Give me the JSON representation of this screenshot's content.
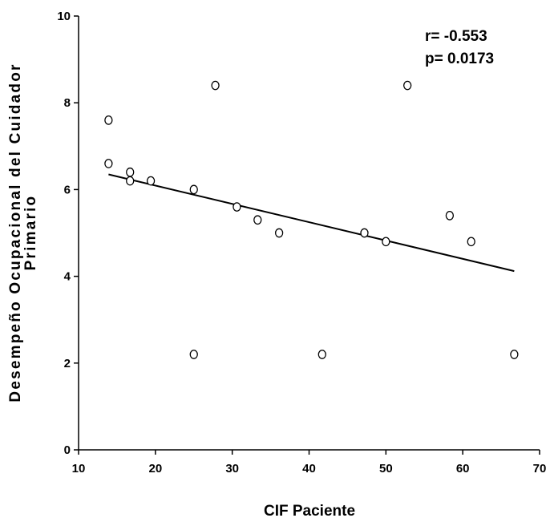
{
  "chart_data": {
    "type": "scatter",
    "xlabel": "CIF Paciente",
    "ylabel_lines": [
      "Desempeño Ocupacional del Cuidador",
      "Primario"
    ],
    "xlim": [
      10,
      70
    ],
    "ylim": [
      0,
      10
    ],
    "xticks": [
      "10",
      "20",
      "30",
      "40",
      "50",
      "60",
      "70"
    ],
    "yticks": [
      "0",
      "2",
      "4",
      "6",
      "8",
      "10"
    ],
    "grid": false,
    "annotations": [
      "r= -0.553",
      "p= 0.0173"
    ],
    "points": [
      {
        "x": 13.9,
        "y": 7.6
      },
      {
        "x": 13.9,
        "y": 6.6
      },
      {
        "x": 16.7,
        "y": 6.4
      },
      {
        "x": 16.7,
        "y": 6.2
      },
      {
        "x": 19.4,
        "y": 6.2
      },
      {
        "x": 25.0,
        "y": 6.0
      },
      {
        "x": 25.0,
        "y": 2.2
      },
      {
        "x": 27.8,
        "y": 8.4
      },
      {
        "x": 30.6,
        "y": 5.6
      },
      {
        "x": 33.3,
        "y": 5.3
      },
      {
        "x": 36.1,
        "y": 5.0
      },
      {
        "x": 41.7,
        "y": 2.2
      },
      {
        "x": 47.2,
        "y": 5.0
      },
      {
        "x": 50.0,
        "y": 4.8
      },
      {
        "x": 52.8,
        "y": 8.4
      },
      {
        "x": 58.3,
        "y": 5.4
      },
      {
        "x": 61.1,
        "y": 4.8
      },
      {
        "x": 66.7,
        "y": 2.2
      }
    ],
    "trendline": {
      "x": [
        13.9,
        66.7
      ],
      "y": [
        6.35,
        4.12
      ]
    }
  }
}
